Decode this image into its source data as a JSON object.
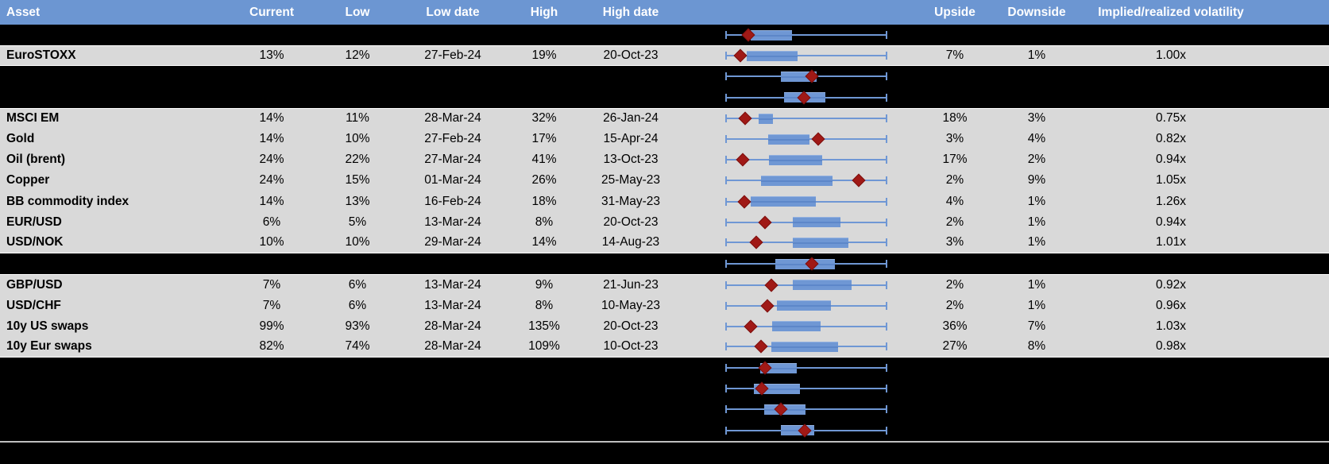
{
  "header": {
    "columns": {
      "asset": "Asset",
      "current": "Current",
      "low": "Low",
      "low_date": "Low date",
      "high": "High",
      "high_date": "High date",
      "chart": "",
      "upside": "Upside",
      "downside": "Downside",
      "implied": "Implied/realized volatility"
    }
  },
  "rows": [
    {
      "type": "hidden"
    },
    {
      "type": "data",
      "asset": "EuroSTOXX",
      "current": "13%",
      "low": "12%",
      "low_date": "27-Feb-24",
      "high": "19%",
      "high_date": "20-Oct-23",
      "upside": "7%",
      "downside": "1%",
      "implied": "1.00x"
    },
    {
      "type": "hidden"
    },
    {
      "type": "hidden"
    },
    {
      "type": "data",
      "asset": "MSCI EM",
      "current": "14%",
      "low": "11%",
      "low_date": "28-Mar-24",
      "high": "32%",
      "high_date": "26-Jan-24",
      "upside": "18%",
      "downside": "3%",
      "implied": "0.75x"
    },
    {
      "type": "data",
      "asset": "Gold",
      "current": "14%",
      "low": "10%",
      "low_date": "27-Feb-24",
      "high": "17%",
      "high_date": "15-Apr-24",
      "upside": "3%",
      "downside": "4%",
      "implied": "0.82x"
    },
    {
      "type": "data",
      "asset": "Oil (brent)",
      "current": "24%",
      "low": "22%",
      "low_date": "27-Mar-24",
      "high": "41%",
      "high_date": "13-Oct-23",
      "upside": "17%",
      "downside": "2%",
      "implied": "0.94x"
    },
    {
      "type": "data",
      "asset": "Copper",
      "current": "24%",
      "low": "15%",
      "low_date": "01-Mar-24",
      "high": "26%",
      "high_date": "25-May-23",
      "upside": "2%",
      "downside": "9%",
      "implied": "1.05x"
    },
    {
      "type": "data",
      "asset": "BB commodity index",
      "current": "14%",
      "low": "13%",
      "low_date": "16-Feb-24",
      "high": "18%",
      "high_date": "31-May-23",
      "upside": "4%",
      "downside": "1%",
      "implied": "1.26x"
    },
    {
      "type": "data",
      "asset": "EUR/USD",
      "current": "6%",
      "low": "5%",
      "low_date": "13-Mar-24",
      "high": "8%",
      "high_date": "20-Oct-23",
      "upside": "2%",
      "downside": "1%",
      "implied": "0.94x"
    },
    {
      "type": "data",
      "asset": "USD/NOK",
      "current": "10%",
      "low": "10%",
      "low_date": "29-Mar-24",
      "high": "14%",
      "high_date": "14-Aug-23",
      "upside": "3%",
      "downside": "1%",
      "implied": "1.01x"
    },
    {
      "type": "hidden"
    },
    {
      "type": "data",
      "asset": "GBP/USD",
      "current": "7%",
      "low": "6%",
      "low_date": "13-Mar-24",
      "high": "9%",
      "high_date": "21-Jun-23",
      "upside": "2%",
      "downside": "1%",
      "implied": "0.92x"
    },
    {
      "type": "data",
      "asset": "USD/CHF",
      "current": "7%",
      "low": "6%",
      "low_date": "13-Mar-24",
      "high": "8%",
      "high_date": "10-May-23",
      "upside": "2%",
      "downside": "1%",
      "implied": "0.96x"
    },
    {
      "type": "data",
      "asset": "10y US swaps",
      "current": "99%",
      "low": "93%",
      "low_date": "28-Mar-24",
      "high": "135%",
      "high_date": "20-Oct-23",
      "upside": "36%",
      "downside": "7%",
      "implied": "1.03x"
    },
    {
      "type": "data",
      "asset": "10y Eur swaps",
      "current": "82%",
      "low": "74%",
      "low_date": "28-Mar-24",
      "high": "109%",
      "high_date": "10-Oct-23",
      "upside": "27%",
      "downside": "8%",
      "implied": "0.98x"
    },
    {
      "type": "hidden"
    },
    {
      "type": "hidden"
    },
    {
      "type": "hidden"
    },
    {
      "type": "hidden"
    }
  ],
  "chart_data": {
    "type": "boxplot",
    "orientation": "horizontal",
    "axis_visible": false,
    "note": "One horizontal box-whisker per table row; whiskers span the full shared range; positions normalized 0-1 of plot width; red diamond = current marker",
    "whisker_range": [
      0,
      1
    ],
    "boxplots": [
      {
        "label": "",
        "whisker": [
          0,
          1
        ],
        "box": [
          0.157,
          0.412
        ],
        "marker": 0.142
      },
      {
        "label": "EuroSTOXX",
        "whisker": [
          0,
          1
        ],
        "box": [
          0.132,
          0.446
        ],
        "marker": 0.092
      },
      {
        "label": "",
        "whisker": [
          0,
          1
        ],
        "box": [
          0.343,
          0.564
        ],
        "marker": 0.533
      },
      {
        "label": "",
        "whisker": [
          0,
          1
        ],
        "box": [
          0.361,
          0.619
        ],
        "marker": 0.484
      },
      {
        "label": "MSCI EM",
        "whisker": [
          0,
          1
        ],
        "box": [
          0.206,
          0.293
        ],
        "marker": 0.121
      },
      {
        "label": "Gold",
        "whisker": [
          0,
          1
        ],
        "box": [
          0.263,
          0.521
        ],
        "marker": 0.574
      },
      {
        "label": "Oil (brent)",
        "whisker": [
          0,
          1
        ],
        "box": [
          0.268,
          0.598
        ],
        "marker": 0.108
      },
      {
        "label": "Copper",
        "whisker": [
          0,
          1
        ],
        "box": [
          0.219,
          0.663
        ],
        "marker": 0.824
      },
      {
        "label": "BB commodity index",
        "whisker": [
          0,
          1
        ],
        "box": [
          0.157,
          0.557
        ],
        "marker": 0.116
      },
      {
        "label": "EUR/USD",
        "whisker": [
          0,
          1
        ],
        "box": [
          0.418,
          0.712
        ],
        "marker": 0.244
      },
      {
        "label": "USD/NOK",
        "whisker": [
          0,
          1
        ],
        "box": [
          0.418,
          0.758
        ],
        "marker": 0.19
      },
      {
        "label": "",
        "whisker": [
          0,
          1
        ],
        "box": [
          0.307,
          0.675
        ],
        "marker": 0.533
      },
      {
        "label": "GBP/USD",
        "whisker": [
          0,
          1
        ],
        "box": [
          0.418,
          0.778
        ],
        "marker": 0.284
      },
      {
        "label": "USD/CHF",
        "whisker": [
          0,
          1
        ],
        "box": [
          0.317,
          0.652
        ],
        "marker": 0.258
      },
      {
        "label": "10y US swaps",
        "whisker": [
          0,
          1
        ],
        "box": [
          0.291,
          0.587
        ],
        "marker": 0.157
      },
      {
        "label": "10y Eur swaps",
        "whisker": [
          0,
          1
        ],
        "box": [
          0.284,
          0.696
        ],
        "marker": 0.222
      },
      {
        "label": "",
        "whisker": [
          0,
          1
        ],
        "box": [
          0.217,
          0.44
        ],
        "marker": 0.247
      },
      {
        "label": "",
        "whisker": [
          0,
          1
        ],
        "box": [
          0.178,
          0.462
        ],
        "marker": 0.227
      },
      {
        "label": "",
        "whisker": [
          0,
          1
        ],
        "box": [
          0.239,
          0.495
        ],
        "marker": 0.345
      },
      {
        "label": "",
        "whisker": [
          0,
          1
        ],
        "box": [
          0.342,
          0.549
        ],
        "marker": 0.49
      }
    ]
  },
  "colors": {
    "header_background": "#6c96d2",
    "header_text": "#ffffff",
    "data_row_background": "#d9d9d9",
    "hidden_row_background": "#000000",
    "cell_text": "#000000",
    "box_fill": "#6f97d4",
    "whisker": "#6f97d4",
    "marker_diamond": "#a01916",
    "footer_divider": "#bfbfbf"
  }
}
